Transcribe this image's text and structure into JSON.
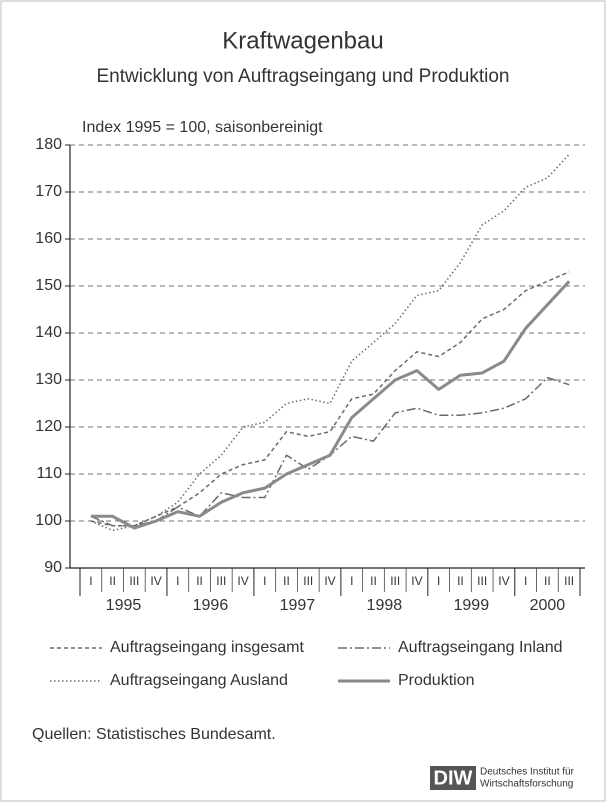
{
  "chart_data": {
    "type": "line",
    "title": "Kraftwagenbau",
    "subtitle": "Entwicklung von Auftragseingang und Produktion",
    "ylabel": "Index 1995 = 100, saisonbereinigt",
    "categories": [
      "I",
      "II",
      "III",
      "IV",
      "I",
      "II",
      "III",
      "IV",
      "I",
      "II",
      "III",
      "IV",
      "I",
      "II",
      "III",
      "IV",
      "I",
      "II",
      "III",
      "IV",
      "I",
      "II",
      "III"
    ],
    "years": [
      "1995",
      "1996",
      "1997",
      "1998",
      "1999",
      "2000"
    ],
    "ylim": [
      90,
      180
    ],
    "yticks": [
      90,
      100,
      110,
      120,
      130,
      140,
      150,
      160,
      170,
      180
    ],
    "grid": true,
    "series": [
      {
        "name": "Auftragseingang insgesamt",
        "color": "#6a6a6a",
        "style": "dashed",
        "values": [
          100,
          99,
          99,
          101,
          103,
          106,
          110,
          112,
          113,
          119,
          118,
          119,
          126,
          127,
          132,
          136,
          135,
          138,
          143,
          145,
          149,
          151,
          153
        ]
      },
      {
        "name": "Auftragseingang Inland",
        "color": "#6a6a6a",
        "style": "dashdot",
        "values": [
          101,
          99,
          99,
          100,
          103,
          101,
          106,
          105,
          105,
          114,
          111,
          114,
          118,
          117,
          123,
          124,
          122.5,
          122.5,
          123,
          124,
          126,
          130.5,
          129
        ]
      },
      {
        "name": "Auftragseingang Ausland",
        "color": "#6a6a6a",
        "style": "dotted",
        "values": [
          100,
          98,
          99,
          101,
          104,
          110,
          114,
          120,
          121,
          125,
          126,
          125,
          134,
          138,
          142,
          148,
          149,
          155,
          163,
          166,
          171,
          173,
          178
        ]
      },
      {
        "name": "Produktion",
        "color": "#8a8a8a",
        "style": "solid",
        "values": [
          101,
          101,
          98.5,
          100,
          102,
          101,
          104,
          106,
          107,
          110,
          112,
          114,
          122,
          126,
          130,
          132,
          128,
          131,
          131.5,
          134,
          141,
          146,
          151
        ]
      }
    ],
    "source": "Quellen: Statistisches Bundesamt.",
    "logo": {
      "mark": "DIW",
      "line1": "Deutsches Institut für",
      "line2": "Wirtschaftsforschung"
    }
  }
}
